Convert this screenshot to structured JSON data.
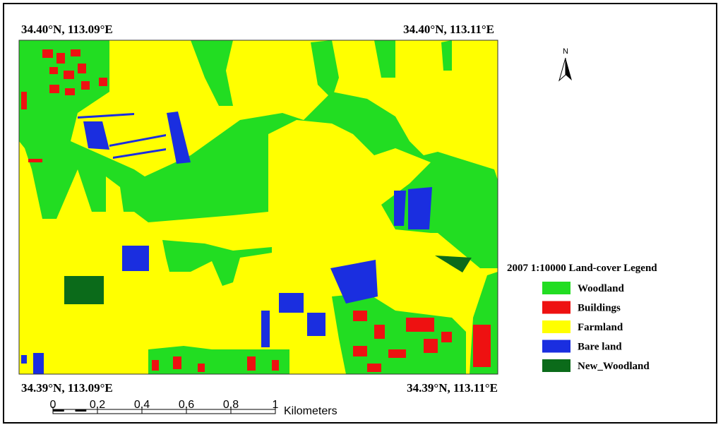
{
  "corners": {
    "top_left": "34.40°N, 113.09°E",
    "top_right": "34.40°N, 113.11°E",
    "bottom_left": "34.39°N, 113.09°E",
    "bottom_right": "34.39°N, 113.11°E"
  },
  "north": "N",
  "legend": {
    "title": "2007  1:10000 Land-cover  Legend",
    "items": [
      {
        "label": "Woodland",
        "color": "#22dd22"
      },
      {
        "label": "Buildings",
        "color": "#ee1111"
      },
      {
        "label": "Farmland",
        "color": "#ffff00"
      },
      {
        "label": "Bare land",
        "color": "#1a2ee0"
      },
      {
        "label": "New_Woodland",
        "color": "#0b6b1a"
      }
    ]
  },
  "scale_bar": {
    "ticks": [
      0,
      0.2,
      0.4,
      0.6,
      0.8,
      1
    ],
    "unit": "Kilometers"
  }
}
